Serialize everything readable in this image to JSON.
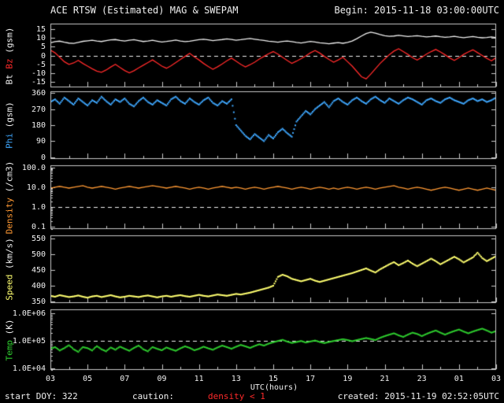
{
  "header": {
    "title": "ACE RTSW (Estimated) MAG & SWEPAM",
    "begin": "Begin: 2015-11-18 03:00:00UTC"
  },
  "footer": {
    "start_doy": "start DOY: 322",
    "caution_label": "caution:",
    "caution_value": "density < 1",
    "caution_color": "#ff2a2a",
    "created": "created: 2015-11-19 02:52:05UTC"
  },
  "x_axis": {
    "label": "UTC(hours)",
    "tick_labels": [
      "03",
      "05",
      "07",
      "09",
      "11",
      "13",
      "15",
      "17",
      "19",
      "21",
      "23",
      "01",
      "03"
    ],
    "hours_span": 24,
    "major_step_hours": 2,
    "minor_step_hours": 1
  },
  "colors": {
    "background": "#000000",
    "frame": "#c8c8c8",
    "text": "#f0f0f0",
    "bt": "#f0f0f0",
    "bz": "#ff2a2a",
    "phi": "#3fa8ff",
    "density": "#ff9933",
    "speed": "#ffff70",
    "temp": "#2ecc2e"
  },
  "chart_data": [
    {
      "type": "scatter",
      "panel": "bt_bz",
      "label_parts": [
        {
          "text": "Bt ",
          "color": "#f0f0f0"
        },
        {
          "text": "Bz ",
          "color": "#ff2a2a"
        },
        {
          "text": "(gsm)",
          "color": "#f0f0f0"
        }
      ],
      "scale": "linear",
      "ylim": [
        -18,
        18
      ],
      "yticks": [
        {
          "v": 15,
          "label": "15"
        },
        {
          "v": 10,
          "label": "10"
        },
        {
          "v": 5,
          "label": "5"
        },
        {
          "v": 0,
          "label": "0"
        },
        {
          "v": -5,
          "label": "-5"
        },
        {
          "v": -10,
          "label": "-10"
        },
        {
          "v": -15,
          "label": "-15"
        }
      ],
      "dashed_at": 0,
      "x_start": 0,
      "x_step": 0.25,
      "series": [
        {
          "name": "Bt",
          "color": "#f0f0f0",
          "style": "line",
          "values": [
            7.2,
            7.8,
            8.1,
            7.5,
            7.0,
            6.8,
            7.4,
            8.0,
            8.3,
            8.6,
            8.2,
            7.9,
            8.4,
            8.8,
            9.0,
            8.5,
            8.2,
            8.6,
            8.9,
            8.4,
            7.9,
            8.2,
            8.6,
            8.1,
            7.6,
            7.9,
            8.3,
            8.7,
            8.2,
            7.8,
            8.1,
            8.5,
            8.9,
            9.2,
            8.8,
            8.4,
            8.7,
            9.0,
            9.4,
            9.1,
            8.6,
            8.9,
            9.3,
            9.6,
            9.2,
            8.8,
            8.5,
            8.1,
            7.8,
            7.5,
            7.9,
            8.2,
            7.8,
            7.4,
            7.1,
            7.5,
            7.9,
            7.6,
            7.2,
            6.9,
            6.6,
            7.0,
            7.3,
            6.9,
            7.4,
            8.2,
            9.5,
            11.0,
            12.4,
            13.2,
            12.6,
            11.8,
            11.2,
            10.8,
            11.0,
            11.4,
            11.1,
            10.7,
            10.9,
            11.2,
            10.8,
            10.5,
            10.7,
            11.0,
            10.6,
            10.3,
            10.5,
            10.8,
            10.4,
            10.1,
            10.4,
            10.7,
            10.3,
            10.0,
            10.2,
            10.5,
            10.1
          ]
        },
        {
          "name": "Bz",
          "color": "#ff2a2a",
          "style": "line",
          "values": [
            3.0,
            1.5,
            -1.0,
            -3.5,
            -5.0,
            -4.2,
            -2.8,
            -4.5,
            -6.0,
            -7.5,
            -8.8,
            -9.5,
            -8.2,
            -6.5,
            -5.0,
            -6.8,
            -8.5,
            -9.8,
            -8.6,
            -7.0,
            -5.5,
            -4.0,
            -2.5,
            -4.2,
            -6.0,
            -7.2,
            -5.8,
            -4.0,
            -2.2,
            -0.5,
            1.2,
            -0.8,
            -2.5,
            -4.5,
            -6.2,
            -7.8,
            -6.4,
            -4.8,
            -3.0,
            -1.5,
            -3.2,
            -5.0,
            -6.5,
            -5.2,
            -3.8,
            -2.0,
            -0.5,
            1.0,
            2.2,
            0.8,
            -1.0,
            -2.8,
            -4.5,
            -3.2,
            -1.8,
            -0.2,
            1.5,
            2.8,
            1.4,
            -0.5,
            -2.2,
            -3.8,
            -2.5,
            -1.0,
            -3.5,
            -6.0,
            -9.0,
            -12.0,
            -13.2,
            -10.5,
            -7.5,
            -4.5,
            -2.0,
            0.5,
            2.5,
            3.8,
            2.2,
            0.6,
            -1.2,
            -2.6,
            -1.0,
            0.8,
            2.2,
            3.4,
            2.0,
            0.4,
            -1.4,
            -2.8,
            -1.2,
            0.6,
            2.0,
            3.2,
            1.6,
            0.0,
            -1.6,
            -3.0,
            -1.2
          ]
        }
      ]
    },
    {
      "type": "scatter",
      "panel": "phi",
      "label_parts": [
        {
          "text": "Phi ",
          "color": "#3fa8ff"
        },
        {
          "text": "(gsm)",
          "color": "#f0f0f0"
        }
      ],
      "scale": "linear",
      "ylim": [
        -10,
        370
      ],
      "yticks": [
        {
          "v": 360,
          "label": "360"
        },
        {
          "v": 270,
          "label": "270"
        },
        {
          "v": 180,
          "label": "180"
        },
        {
          "v": 90,
          "label": "90"
        },
        {
          "v": 0,
          "label": "0"
        }
      ],
      "dashed_at": null,
      "x_start": 0,
      "x_step": 0.25,
      "series": [
        {
          "name": "Phi",
          "color": "#3fa8ff",
          "style": "dots",
          "values": [
            310,
            325,
            300,
            335,
            315,
            295,
            330,
            310,
            290,
            320,
            305,
            340,
            315,
            295,
            325,
            310,
            330,
            300,
            285,
            315,
            335,
            310,
            295,
            320,
            305,
            290,
            325,
            340,
            315,
            300,
            330,
            310,
            295,
            320,
            335,
            305,
            290,
            315,
            300,
            325,
            180,
            150,
            120,
            100,
            130,
            110,
            90,
            125,
            105,
            140,
            160,
            135,
            115,
            200,
            230,
            260,
            240,
            270,
            290,
            310,
            280,
            315,
            330,
            310,
            295,
            320,
            335,
            315,
            300,
            325,
            340,
            320,
            305,
            330,
            315,
            300,
            320,
            335,
            325,
            310,
            295,
            320,
            330,
            315,
            305,
            325,
            335,
            320,
            310,
            300,
            320,
            330,
            315,
            325,
            310,
            320,
            335
          ]
        }
      ]
    },
    {
      "type": "scatter",
      "panel": "density",
      "label_parts": [
        {
          "text": "Density ",
          "color": "#ff9933"
        },
        {
          "text": "(/cm3)",
          "color": "#f0f0f0"
        }
      ],
      "scale": "log",
      "ylim": [
        0.079,
        126
      ],
      "yticks": [
        {
          "v": 100,
          "label": "100.0"
        },
        {
          "v": 10,
          "label": "10.0"
        },
        {
          "v": 1,
          "label": "1.0"
        },
        {
          "v": 0.1,
          "label": "0.1"
        }
      ],
      "dashed_at": 1.0,
      "x_start": 0,
      "x_step": 0.25,
      "series": [
        {
          "name": "Density",
          "color": "#ff9933",
          "style": "line",
          "values": [
            9,
            10,
            11,
            10,
            9,
            10,
            11,
            12,
            10,
            9,
            10,
            11,
            10,
            9,
            8,
            9,
            10,
            11,
            10,
            9,
            10,
            11,
            12,
            11,
            10,
            9,
            10,
            11,
            10,
            9,
            8,
            9,
            10,
            9,
            8,
            9,
            10,
            11,
            10,
            9,
            10,
            9,
            8,
            9,
            10,
            9,
            8,
            9,
            10,
            11,
            10,
            9,
            8,
            9,
            10,
            9,
            8,
            9,
            10,
            9,
            8,
            9,
            8,
            9,
            10,
            9,
            8,
            9,
            10,
            9,
            8,
            9,
            10,
            11,
            12,
            10,
            9,
            8,
            9,
            10,
            9,
            8,
            7,
            8,
            9,
            10,
            9,
            8,
            7,
            8,
            9,
            8,
            7,
            8,
            9,
            8,
            7
          ]
        }
      ]
    },
    {
      "type": "scatter",
      "panel": "speed",
      "label_parts": [
        {
          "text": "Speed ",
          "color": "#ffff70"
        },
        {
          "text": "(km/s)",
          "color": "#f0f0f0"
        }
      ],
      "scale": "linear",
      "ylim": [
        345,
        560
      ],
      "yticks": [
        {
          "v": 550,
          "label": "550"
        },
        {
          "v": 500,
          "label": "500"
        },
        {
          "v": 450,
          "label": "450"
        },
        {
          "v": 400,
          "label": "400"
        },
        {
          "v": 350,
          "label": "350"
        }
      ],
      "dashed_at": null,
      "x_start": 0,
      "x_step": 0.25,
      "series": [
        {
          "name": "Speed",
          "color": "#ffff70",
          "style": "dots",
          "values": [
            368,
            365,
            370,
            367,
            364,
            366,
            369,
            365,
            362,
            366,
            368,
            364,
            367,
            370,
            366,
            363,
            365,
            368,
            366,
            364,
            367,
            369,
            366,
            363,
            366,
            368,
            365,
            368,
            370,
            367,
            365,
            368,
            371,
            368,
            366,
            369,
            372,
            370,
            368,
            371,
            374,
            372,
            375,
            378,
            382,
            386,
            390,
            394,
            400,
            428,
            435,
            430,
            422,
            418,
            414,
            418,
            422,
            416,
            412,
            416,
            420,
            424,
            428,
            432,
            436,
            440,
            445,
            450,
            455,
            448,
            442,
            452,
            460,
            468,
            475,
            465,
            472,
            480,
            470,
            462,
            470,
            478,
            486,
            478,
            468,
            476,
            484,
            492,
            484,
            474,
            482,
            490,
            505,
            488,
            478,
            486,
            494
          ]
        }
      ]
    },
    {
      "type": "scatter",
      "panel": "temp",
      "label_parts": [
        {
          "text": "Temp ",
          "color": "#2ecc2e"
        },
        {
          "text": "(K)",
          "color": "#f0f0f0"
        }
      ],
      "scale": "log",
      "ylim": [
        8900,
        1410000
      ],
      "yticks": [
        {
          "v": 1000000,
          "label": "1.0E+06"
        },
        {
          "v": 100000,
          "label": "1.0E+05"
        },
        {
          "v": 10000,
          "label": "1.0E+04"
        }
      ],
      "dashed_at": 100000,
      "x_start": 0,
      "x_step": 0.25,
      "series": [
        {
          "name": "Temp",
          "color": "#2ecc2e",
          "style": "dots",
          "values": [
            52000,
            60000,
            45000,
            55000,
            70000,
            50000,
            40000,
            60000,
            55000,
            45000,
            65000,
            50000,
            42000,
            58000,
            48000,
            62000,
            52000,
            44000,
            56000,
            68000,
            50000,
            42000,
            60000,
            52000,
            46000,
            58000,
            50000,
            44000,
            54000,
            64000,
            56000,
            46000,
            52000,
            62000,
            54000,
            48000,
            58000,
            68000,
            60000,
            52000,
            62000,
            72000,
            64000,
            56000,
            66000,
            76000,
            68000,
            80000,
            90000,
            100000,
            110000,
            95000,
            85000,
            92000,
            100000,
            88000,
            96000,
            104000,
            92000,
            84000,
            92000,
            100000,
            108000,
            116000,
            108000,
            98000,
            108000,
            118000,
            128000,
            118000,
            108000,
            130000,
            150000,
            170000,
            190000,
            160000,
            140000,
            170000,
            200000,
            180000,
            150000,
            180000,
            210000,
            240000,
            200000,
            170000,
            200000,
            230000,
            260000,
            220000,
            190000,
            220000,
            250000,
            280000,
            240000,
            200000,
            230000
          ]
        }
      ]
    }
  ]
}
